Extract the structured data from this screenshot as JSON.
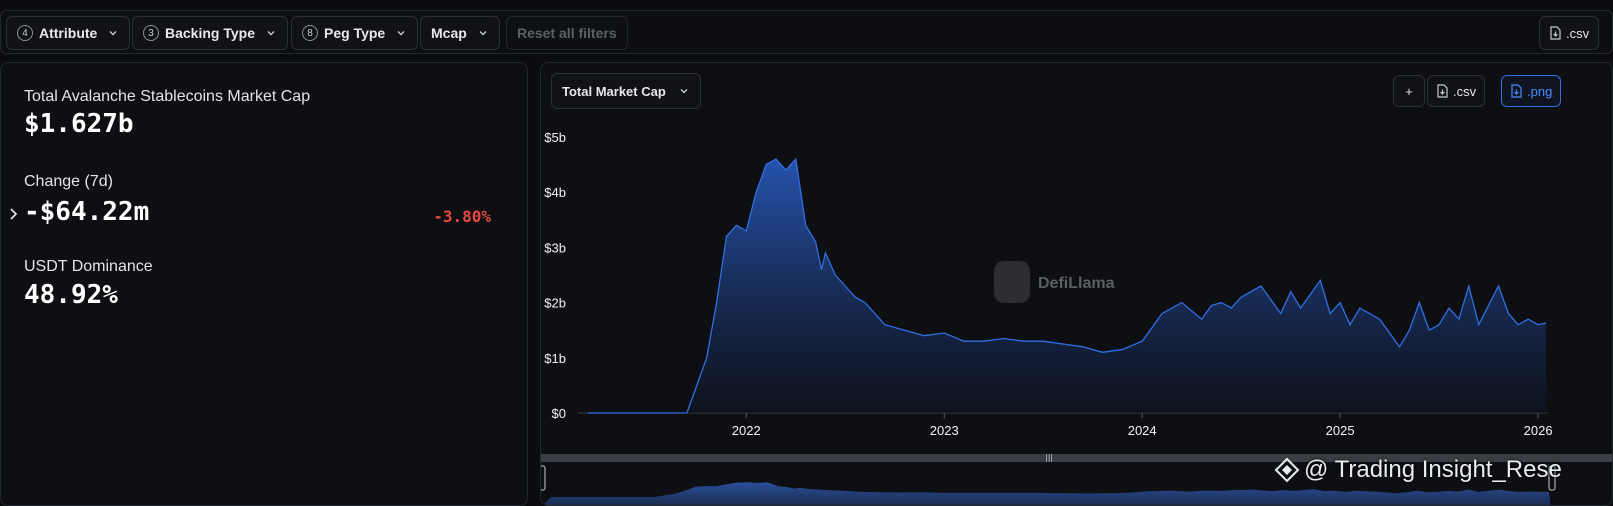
{
  "filters": {
    "attribute": {
      "count": "4",
      "label": "Attribute"
    },
    "backing": {
      "count": "3",
      "label": "Backing Type"
    },
    "peg": {
      "count": "8",
      "label": "Peg Type"
    },
    "mcap": {
      "label": "Mcap"
    },
    "reset_label": "Reset all filters",
    "csv_label": ".csv"
  },
  "stats": {
    "total_label": "Total Avalanche Stablecoins Market Cap",
    "total_value": "$1.627b",
    "change_label": "Change (7d)",
    "change_value": "-$64.22m",
    "change_pct": "-3.80%",
    "dominance_label": "USDT Dominance",
    "dominance_value": "48.92%"
  },
  "chart_panel": {
    "metric_select": "Total Market Cap",
    "add_label": "+",
    "csv_label": ".csv",
    "png_label": ".png",
    "brand": "DefiLlama",
    "accent_color": "#2f6fe4",
    "negative_color": "#e5483f"
  },
  "chart_data": {
    "type": "area",
    "series": [
      {
        "x": [
          2021.2,
          2021.5,
          2021.7,
          2021.75,
          2021.8,
          2021.85,
          2021.9,
          2021.95,
          2022.0,
          2022.05,
          2022.1,
          2022.15,
          2022.2,
          2022.25,
          2022.3,
          2022.35,
          2022.38,
          2022.4,
          2022.45,
          2022.5,
          2022.55,
          2022.6,
          2022.7,
          2022.8,
          2022.9,
          2023.0,
          2023.1,
          2023.2,
          2023.3,
          2023.4,
          2023.5,
          2023.6,
          2023.7,
          2023.8,
          2023.9,
          2024.0,
          2024.1,
          2024.2,
          2024.3,
          2024.35,
          2024.4,
          2024.45,
          2024.5,
          2024.6,
          2024.7,
          2024.75,
          2024.8,
          2024.9,
          2024.95,
          2025.0,
          2025.05,
          2025.1,
          2025.2,
          2025.3,
          2025.35,
          2025.4,
          2025.45,
          2025.5,
          2025.55,
          2025.6,
          2025.65,
          2025.7,
          2025.8,
          2025.85,
          2025.9,
          2025.95,
          2026.0,
          2026.04
        ],
        "values": [
          0.0,
          0.0,
          0.0,
          0.5,
          1.0,
          2.0,
          3.2,
          3.4,
          3.3,
          4.0,
          4.5,
          4.6,
          4.4,
          4.6,
          3.4,
          3.1,
          2.6,
          2.9,
          2.5,
          2.3,
          2.1,
          2.0,
          1.6,
          1.5,
          1.4,
          1.45,
          1.3,
          1.3,
          1.35,
          1.3,
          1.3,
          1.25,
          1.2,
          1.1,
          1.15,
          1.3,
          1.8,
          2.0,
          1.7,
          1.95,
          2.0,
          1.9,
          2.1,
          2.3,
          1.8,
          2.2,
          1.9,
          2.4,
          1.8,
          2.0,
          1.6,
          1.9,
          1.7,
          1.2,
          1.5,
          2.0,
          1.5,
          1.6,
          1.9,
          1.7,
          2.3,
          1.6,
          2.3,
          1.8,
          1.6,
          1.7,
          1.6,
          1.63
        ]
      }
    ],
    "x_ticks": [
      "2022",
      "2023",
      "2024",
      "2025",
      "2026"
    ],
    "y_ticks": [
      "$0",
      "$1b",
      "$2b",
      "$3b",
      "$4b",
      "$5b"
    ],
    "ylim": [
      0,
      5
    ],
    "xlim": [
      2021.15,
      2026.05
    ],
    "grid": false
  },
  "overlay": {
    "watermark_text": "@ Trading Insight_Rese",
    "watermark_icon": "diamond-logo-icon"
  }
}
